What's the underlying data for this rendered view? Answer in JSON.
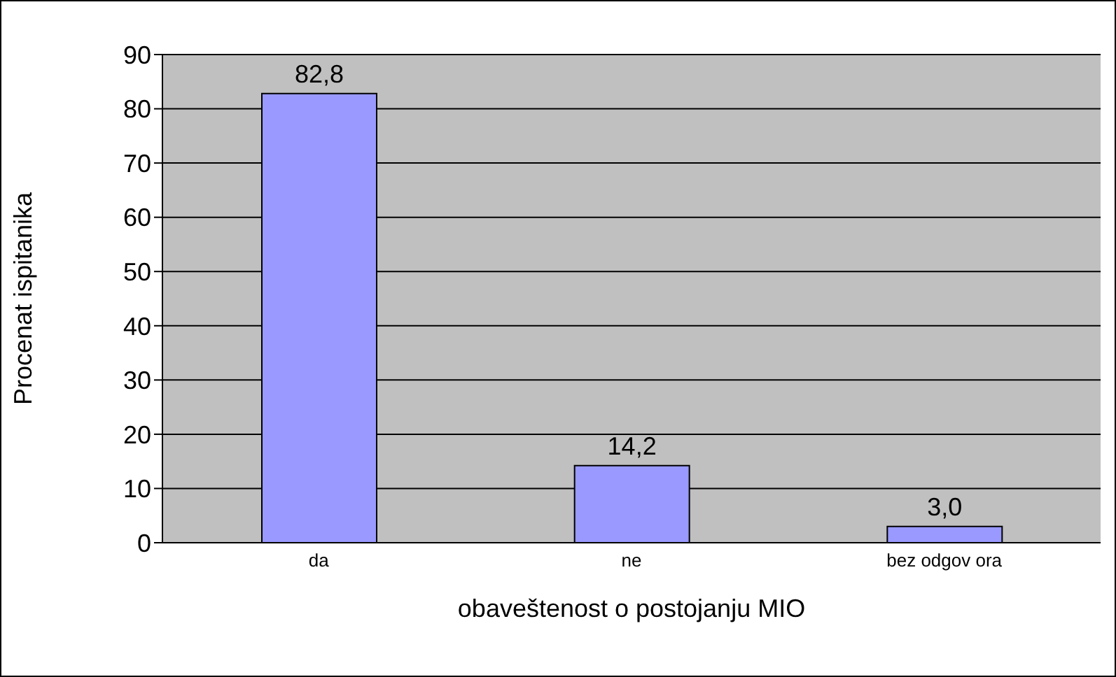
{
  "chart_data": {
    "type": "bar",
    "categories": [
      "da",
      "ne",
      "bez odgov ora"
    ],
    "values": [
      82.8,
      14.2,
      3.0
    ],
    "value_labels": [
      "82,8",
      "14,2",
      "3,0"
    ],
    "color": "#9999ff",
    "xlabel": "obaveštenost o postojanju MIO",
    "ylabel": "Procenat ispitanika",
    "ylim": [
      0,
      90
    ],
    "yticks": [
      0,
      10,
      20,
      30,
      40,
      50,
      60,
      70,
      80,
      90
    ],
    "grid": "y"
  }
}
